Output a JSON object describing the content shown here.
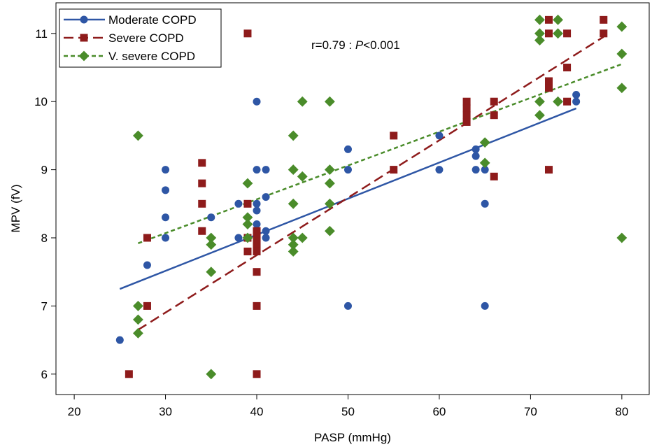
{
  "chart_data": {
    "type": "scatter",
    "title": "",
    "xlabel": "PASP (mmHg)",
    "ylabel": "MPV (fV)",
    "xlim": [
      18,
      83
    ],
    "ylim": [
      5.7,
      11.45
    ],
    "xticks": [
      20,
      30,
      40,
      50,
      60,
      70,
      80
    ],
    "yticks": [
      6,
      7,
      8,
      9,
      10,
      11
    ],
    "grid": false,
    "legend_position": "top-left",
    "annotation": {
      "prefix": "r=0.79 : ",
      "p_label": "P",
      "suffix": "<0.001"
    },
    "series": [
      {
        "name": "Moderate COPD",
        "color": "#2E56A5",
        "marker": "circle",
        "line_style": "solid",
        "fit": [
          [
            25,
            7.25
          ],
          [
            75,
            9.9
          ]
        ],
        "points": [
          [
            25,
            6.5
          ],
          [
            28,
            7.6
          ],
          [
            28,
            8.0
          ],
          [
            30,
            9.0
          ],
          [
            30,
            8.7
          ],
          [
            30,
            8.3
          ],
          [
            30,
            8.0
          ],
          [
            35,
            8.3
          ],
          [
            38,
            8.5
          ],
          [
            38,
            8.0
          ],
          [
            40,
            10.0
          ],
          [
            40,
            9.0
          ],
          [
            40,
            8.5
          ],
          [
            40,
            8.4
          ],
          [
            40,
            8.2
          ],
          [
            40,
            8.0
          ],
          [
            41,
            9.0
          ],
          [
            41,
            8.6
          ],
          [
            41,
            8.1
          ],
          [
            41,
            8.0
          ],
          [
            50,
            9.3
          ],
          [
            50,
            9.0
          ],
          [
            50,
            7.0
          ],
          [
            60,
            9.5
          ],
          [
            60,
            9.0
          ],
          [
            64,
            9.3
          ],
          [
            64,
            9.2
          ],
          [
            64,
            9.0
          ],
          [
            65,
            9.0
          ],
          [
            65,
            8.5
          ],
          [
            65,
            7.0
          ],
          [
            75,
            10.1
          ],
          [
            75,
            10.0
          ]
        ]
      },
      {
        "name": "Severe COPD",
        "color": "#8E1B1B",
        "marker": "square",
        "line_style": "long-dash",
        "fit": [
          [
            27,
            6.65
          ],
          [
            78,
            10.95
          ]
        ],
        "points": [
          [
            26,
            6.0
          ],
          [
            28,
            8.0
          ],
          [
            28,
            7.0
          ],
          [
            34,
            9.1
          ],
          [
            34,
            8.8
          ],
          [
            34,
            8.5
          ],
          [
            34,
            8.1
          ],
          [
            39,
            11.0
          ],
          [
            39,
            8.5
          ],
          [
            39,
            8.0
          ],
          [
            39,
            7.8
          ],
          [
            40,
            8.1
          ],
          [
            40,
            8.0
          ],
          [
            40,
            7.9
          ],
          [
            40,
            7.8
          ],
          [
            40,
            7.5
          ],
          [
            40,
            7.0
          ],
          [
            40,
            6.0
          ],
          [
            55,
            9.5
          ],
          [
            55,
            9.0
          ],
          [
            63,
            10.0
          ],
          [
            63,
            9.9
          ],
          [
            63,
            9.8
          ],
          [
            63,
            9.7
          ],
          [
            66,
            10.0
          ],
          [
            66,
            9.8
          ],
          [
            66,
            8.9
          ],
          [
            72,
            11.2
          ],
          [
            72,
            11.0
          ],
          [
            72,
            10.3
          ],
          [
            72,
            10.2
          ],
          [
            72,
            9.0
          ],
          [
            74,
            11.0
          ],
          [
            74,
            10.5
          ],
          [
            74,
            10.0
          ],
          [
            78,
            11.2
          ],
          [
            78,
            11.0
          ]
        ]
      },
      {
        "name": "V. severe COPD",
        "color": "#4A8C2A",
        "marker": "diamond",
        "line_style": "short-dash",
        "fit": [
          [
            27,
            7.92
          ],
          [
            80,
            10.55
          ]
        ],
        "points": [
          [
            27,
            9.5
          ],
          [
            27,
            7.0
          ],
          [
            27,
            6.8
          ],
          [
            27,
            6.6
          ],
          [
            35,
            8.0
          ],
          [
            35,
            7.9
          ],
          [
            35,
            7.5
          ],
          [
            35,
            6.0
          ],
          [
            39,
            8.8
          ],
          [
            39,
            8.3
          ],
          [
            39,
            8.2
          ],
          [
            39,
            8.0
          ],
          [
            44,
            9.5
          ],
          [
            44,
            9.0
          ],
          [
            44,
            8.5
          ],
          [
            44,
            8.0
          ],
          [
            44,
            7.9
          ],
          [
            44,
            7.8
          ],
          [
            45,
            10.0
          ],
          [
            45,
            8.9
          ],
          [
            45,
            8.0
          ],
          [
            48,
            10.0
          ],
          [
            48,
            9.0
          ],
          [
            48,
            8.8
          ],
          [
            48,
            8.5
          ],
          [
            48,
            8.1
          ],
          [
            65,
            9.4
          ],
          [
            65,
            9.1
          ],
          [
            71,
            11.2
          ],
          [
            71,
            11.0
          ],
          [
            71,
            10.9
          ],
          [
            71,
            10.0
          ],
          [
            71,
            9.8
          ],
          [
            73,
            11.2
          ],
          [
            73,
            11.0
          ],
          [
            73,
            10.0
          ],
          [
            80,
            11.1
          ],
          [
            80,
            10.7
          ],
          [
            80,
            10.2
          ],
          [
            80,
            8.0
          ]
        ]
      }
    ]
  }
}
